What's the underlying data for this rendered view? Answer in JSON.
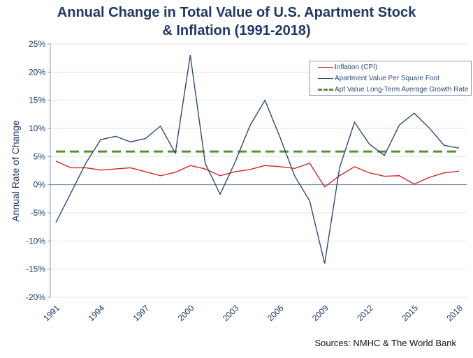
{
  "chart_data": {
    "type": "line",
    "title": "Annual Change in Total Value of U.S. Apartment Stock & Inflation (1991-2018)",
    "title_lines": [
      "Annual Change in Total Value of U.S. Apartment Stock",
      "& Inflation (1991-2018)"
    ],
    "xlabel": "",
    "ylabel": "Annual Rate of Change",
    "x": [
      1991,
      1992,
      1993,
      1994,
      1995,
      1996,
      1997,
      1998,
      1999,
      2000,
      2001,
      2002,
      2003,
      2004,
      2005,
      2006,
      2007,
      2008,
      2009,
      2010,
      2011,
      2012,
      2013,
      2014,
      2015,
      2016,
      2017,
      2018
    ],
    "xticks": [
      "1991",
      "1994",
      "1997",
      "2000",
      "2003",
      "2006",
      "2009",
      "2012",
      "2015",
      "2018"
    ],
    "yticks": [
      "25%",
      "20%",
      "15%",
      "10%",
      "5%",
      "0%",
      "-5%",
      "-10%",
      "-15%",
      "-20%"
    ],
    "ylim": [
      -20,
      25
    ],
    "grid": true,
    "legend_position": "top-right",
    "series": [
      {
        "name": "Inflation (CPI)",
        "color": "#d62728",
        "style": "solid",
        "values": [
          4.2,
          3.0,
          3.0,
          2.6,
          2.8,
          3.0,
          2.3,
          1.6,
          2.2,
          3.4,
          2.8,
          1.6,
          2.3,
          2.7,
          3.4,
          3.2,
          2.9,
          3.8,
          -0.4,
          1.6,
          3.2,
          2.1,
          1.5,
          1.6,
          0.1,
          1.3,
          2.1,
          2.4
        ]
      },
      {
        "name": "Apartment Value Per Square Foot",
        "color": "#2f4a7a",
        "style": "solid",
        "values": [
          -6.7,
          -1.5,
          3.8,
          8.0,
          8.6,
          7.6,
          8.2,
          10.4,
          5.6,
          23.0,
          3.8,
          -1.7,
          4.0,
          10.5,
          15.0,
          8.5,
          1.5,
          -2.9,
          -14.0,
          3.0,
          11.1,
          7.2,
          5.2,
          10.6,
          12.7,
          10.1,
          7.0,
          6.5
        ]
      },
      {
        "name": "Apt Value Long-Term Average Growth Rate",
        "color": "#5b8f2e",
        "style": "dashed",
        "values": [
          5.9,
          5.9,
          5.9,
          5.9,
          5.9,
          5.9,
          5.9,
          5.9,
          5.9,
          5.9,
          5.9,
          5.9,
          5.9,
          5.9,
          5.9,
          5.9,
          5.9,
          5.9,
          5.9,
          5.9,
          5.9,
          5.9,
          5.9,
          5.9,
          5.9,
          5.9,
          5.9,
          5.9
        ]
      }
    ]
  },
  "source": "Sources: NMHC & The World Bank"
}
